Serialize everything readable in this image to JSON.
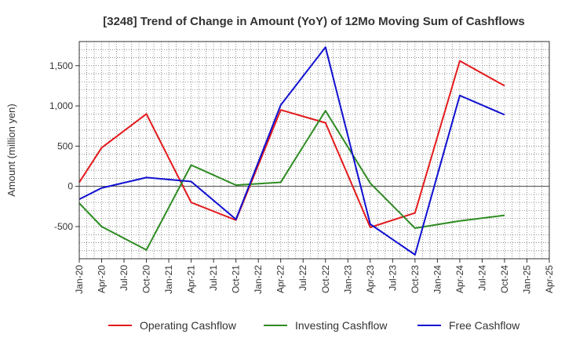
{
  "chart_data": {
    "type": "line",
    "title": "[3248]  Trend of Change in Amount (YoY) of 12Mo Moving Sum of Cashflows",
    "ylabel": "Amount (million yen)",
    "xlabel": "",
    "ylim": [
      -900,
      1800
    ],
    "y_ticks": [
      -500,
      0,
      500,
      1000,
      1500
    ],
    "y_tick_labels": [
      "-500",
      "0",
      "500",
      "1,000",
      "1,500"
    ],
    "categories": [
      "Jan-20",
      "Apr-20",
      "Jul-20",
      "Oct-20",
      "Jan-21",
      "Apr-21",
      "Jul-21",
      "Oct-21",
      "Jan-22",
      "Apr-22",
      "Jul-22",
      "Oct-22",
      "Jan-23",
      "Apr-23",
      "Jul-23",
      "Oct-23",
      "Jan-24",
      "Apr-24",
      "Jul-24",
      "Oct-24",
      "Jan-25",
      "Apr-25"
    ],
    "grid": true,
    "legend_position": "bottom",
    "series": [
      {
        "name": "Operating Cashflow",
        "color": "#e31a1c",
        "points": [
          {
            "x": "Jan-20",
            "y": 50
          },
          {
            "x": "Apr-20",
            "y": 480
          },
          {
            "x": "Oct-20",
            "y": 900
          },
          {
            "x": "Apr-21",
            "y": -200
          },
          {
            "x": "Oct-21",
            "y": -420
          },
          {
            "x": "Apr-22",
            "y": 950
          },
          {
            "x": "Oct-22",
            "y": 790
          },
          {
            "x": "Apr-23",
            "y": -510
          },
          {
            "x": "Oct-23",
            "y": -330
          },
          {
            "x": "Apr-24",
            "y": 1560
          },
          {
            "x": "Oct-24",
            "y": 1250
          }
        ]
      },
      {
        "name": "Investing Cashflow",
        "color": "#2e8b22",
        "points": [
          {
            "x": "Jan-20",
            "y": -210
          },
          {
            "x": "Apr-20",
            "y": -500
          },
          {
            "x": "Oct-20",
            "y": -790
          },
          {
            "x": "Apr-21",
            "y": 265
          },
          {
            "x": "Oct-21",
            "y": 15
          },
          {
            "x": "Apr-22",
            "y": 50
          },
          {
            "x": "Oct-22",
            "y": 940
          },
          {
            "x": "Apr-23",
            "y": 40
          },
          {
            "x": "Oct-23",
            "y": -520
          },
          {
            "x": "Apr-24",
            "y": -430
          },
          {
            "x": "Oct-24",
            "y": -360
          }
        ]
      },
      {
        "name": "Free Cashflow",
        "color": "#1010d0",
        "points": [
          {
            "x": "Jan-20",
            "y": -160
          },
          {
            "x": "Apr-20",
            "y": -20
          },
          {
            "x": "Oct-20",
            "y": 110
          },
          {
            "x": "Apr-21",
            "y": 60
          },
          {
            "x": "Oct-21",
            "y": -410
          },
          {
            "x": "Apr-22",
            "y": 1010
          },
          {
            "x": "Oct-22",
            "y": 1730
          },
          {
            "x": "Apr-23",
            "y": -470
          },
          {
            "x": "Oct-23",
            "y": -850
          },
          {
            "x": "Apr-24",
            "y": 1130
          },
          {
            "x": "Oct-24",
            "y": 890
          }
        ]
      }
    ]
  }
}
